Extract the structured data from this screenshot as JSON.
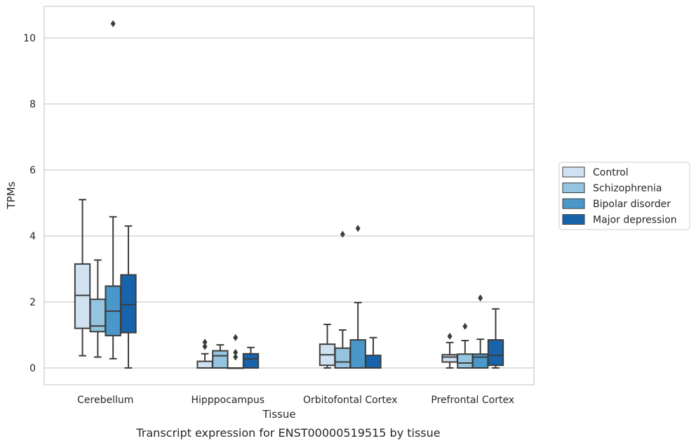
{
  "chart_data": {
    "type": "boxplot",
    "title": "",
    "caption": "Transcript expression for ENST00000519515 by tissue",
    "xlabel": "Tissue",
    "ylabel": "TPMs",
    "ylim": [
      -0.5,
      10.9
    ],
    "yticks": [
      0,
      2,
      4,
      6,
      8,
      10
    ],
    "grid": "horizontal",
    "legend_position": "right",
    "categories": [
      "Cerebellum",
      "Hipppocampus",
      "Orbitofontal Cortex",
      "Prefrontal Cortex"
    ],
    "series": [
      {
        "name": "Control",
        "color": "#d0e1f2",
        "boxes": [
          {
            "whislo": 0.37,
            "q1": 1.2,
            "med": 2.2,
            "q3": 3.15,
            "whishi": 5.1,
            "fliers": []
          },
          {
            "whislo": 0.0,
            "q1": 0.0,
            "med": 0.0,
            "q3": 0.2,
            "whishi": 0.43,
            "fliers": [
              0.65,
              0.78
            ]
          },
          {
            "whislo": 0.0,
            "q1": 0.08,
            "med": 0.4,
            "q3": 0.72,
            "whishi": 1.32,
            "fliers": []
          },
          {
            "whislo": 0.0,
            "q1": 0.18,
            "med": 0.33,
            "q3": 0.4,
            "whishi": 0.77,
            "fliers": [
              0.96
            ]
          }
        ]
      },
      {
        "name": "Schizophrenia",
        "color": "#94c4df",
        "boxes": [
          {
            "whislo": 0.33,
            "q1": 1.1,
            "med": 1.27,
            "q3": 2.08,
            "whishi": 3.27,
            "fliers": []
          },
          {
            "whislo": 0.0,
            "q1": 0.0,
            "med": 0.37,
            "q3": 0.52,
            "whishi": 0.7,
            "fliers": []
          },
          {
            "whislo": 0.0,
            "q1": 0.0,
            "med": 0.18,
            "q3": 0.6,
            "whishi": 1.15,
            "fliers": [
              4.05
            ]
          },
          {
            "whislo": 0.0,
            "q1": 0.0,
            "med": 0.15,
            "q3": 0.42,
            "whishi": 0.83,
            "fliers": [
              1.26
            ]
          }
        ]
      },
      {
        "name": "Bipolar disorder",
        "color": "#4a98c9",
        "boxes": [
          {
            "whislo": 0.28,
            "q1": 0.98,
            "med": 1.72,
            "q3": 2.48,
            "whishi": 4.58,
            "fliers": [
              10.43
            ]
          },
          {
            "whislo": 0.0,
            "q1": 0.0,
            "med": 0.0,
            "q3": 0.0,
            "whishi": 0.0,
            "fliers": [
              0.33,
              0.47,
              0.92
            ]
          },
          {
            "whislo": 0.0,
            "q1": 0.0,
            "med": 0.0,
            "q3": 0.85,
            "whishi": 1.98,
            "fliers": [
              4.23
            ]
          },
          {
            "whislo": 0.0,
            "q1": 0.0,
            "med": 0.33,
            "q3": 0.42,
            "whishi": 0.87,
            "fliers": [
              2.12
            ]
          }
        ]
      },
      {
        "name": "Major depression",
        "color": "#1764ab",
        "boxes": [
          {
            "whislo": 0.0,
            "q1": 1.07,
            "med": 1.92,
            "q3": 2.82,
            "whishi": 4.3,
            "fliers": []
          },
          {
            "whislo": 0.0,
            "q1": 0.0,
            "med": 0.27,
            "q3": 0.43,
            "whishi": 0.62,
            "fliers": []
          },
          {
            "whislo": 0.0,
            "q1": 0.0,
            "med": 0.0,
            "q3": 0.38,
            "whishi": 0.92,
            "fliers": []
          },
          {
            "whislo": 0.0,
            "q1": 0.08,
            "med": 0.38,
            "q3": 0.85,
            "whishi": 1.79,
            "fliers": []
          }
        ]
      }
    ]
  }
}
